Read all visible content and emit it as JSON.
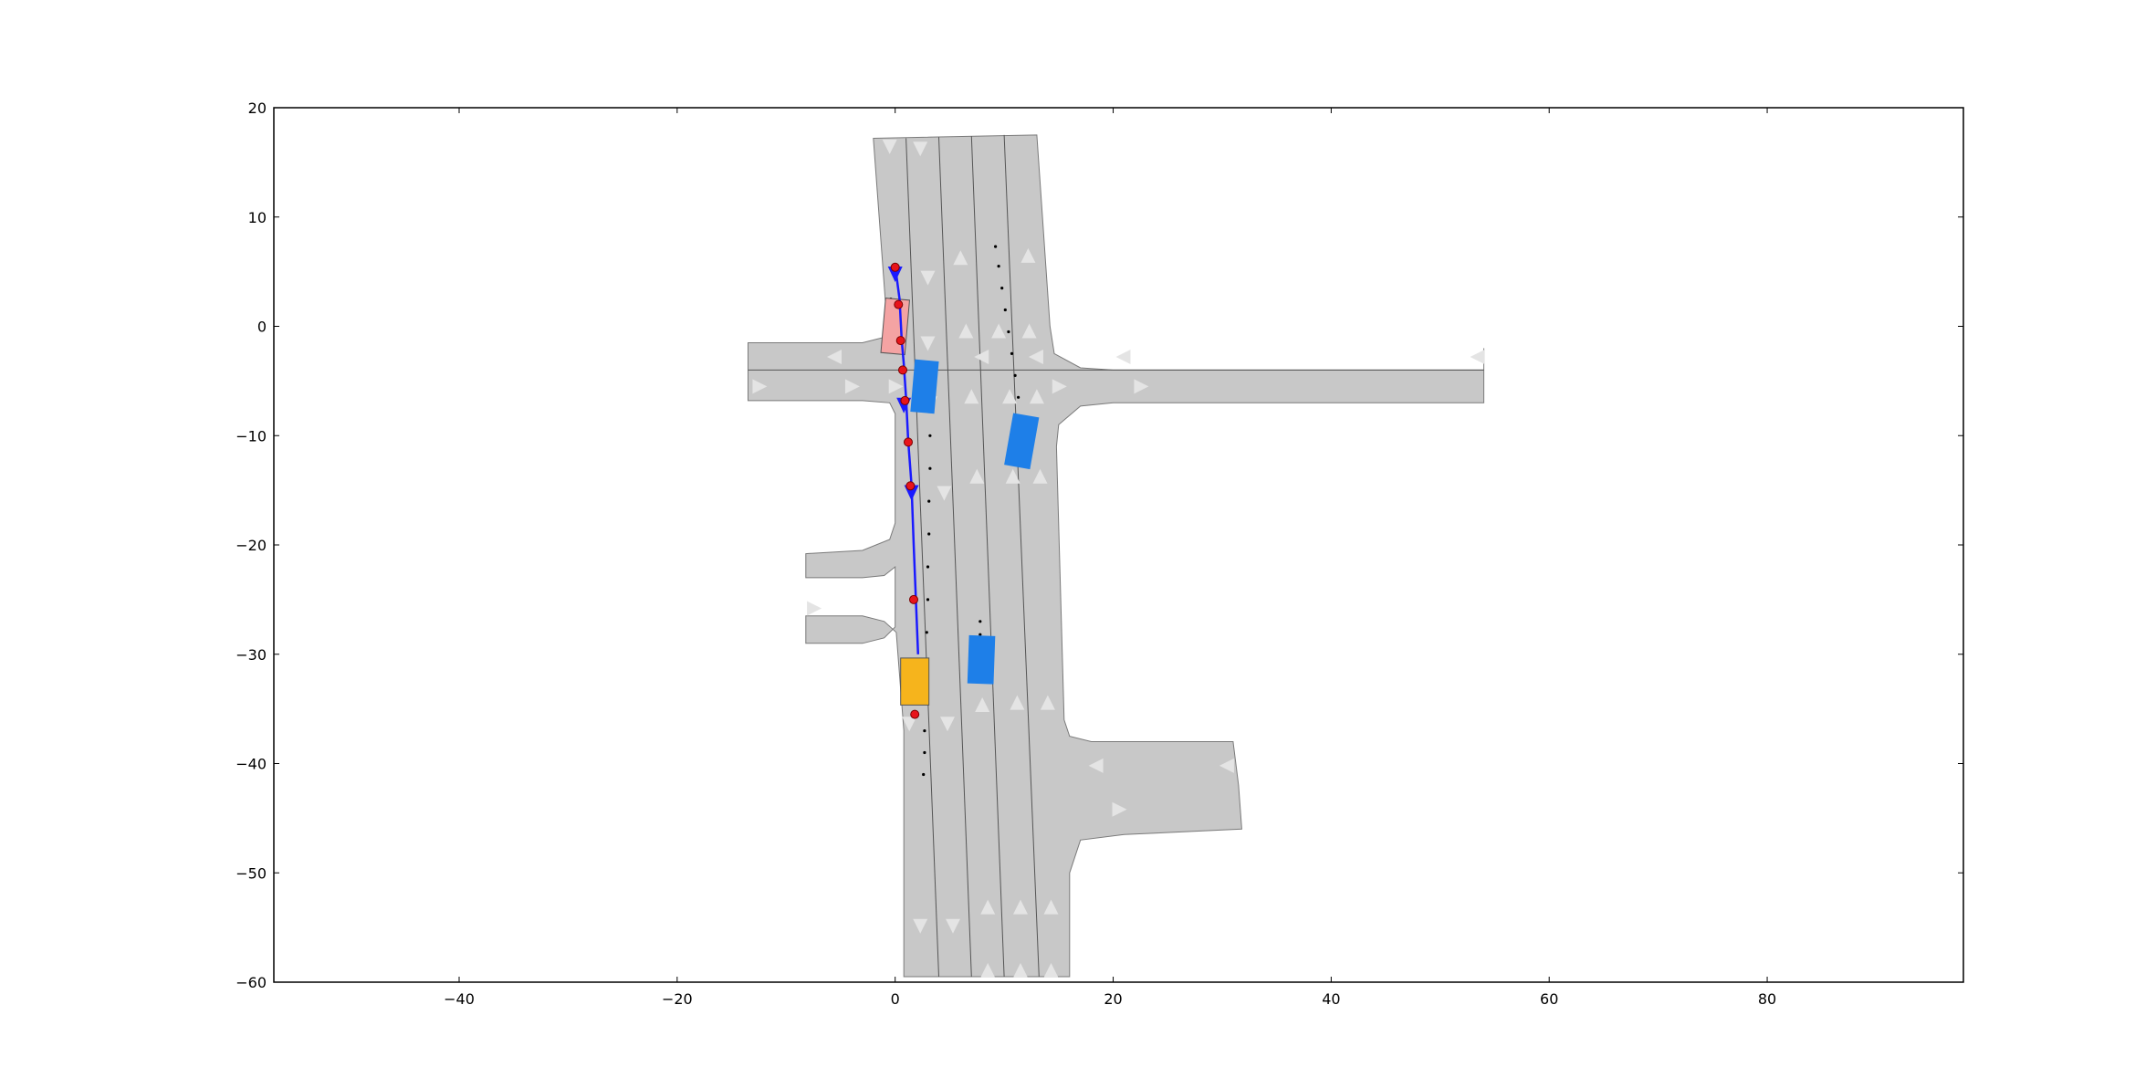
{
  "chart_data": {
    "type": "scatter",
    "title": "",
    "xlabel": "",
    "ylabel": "",
    "xlim": [
      -57,
      98
    ],
    "ylim": [
      -60,
      20
    ],
    "grid": false,
    "x_ticks": [
      -40,
      -20,
      0,
      20,
      40,
      60,
      80
    ],
    "y_ticks": [
      -60,
      -50,
      -40,
      -30,
      -20,
      -10,
      0,
      10,
      20
    ],
    "x_tick_labels": [
      "−40",
      "−20",
      "0",
      "20",
      "40",
      "60",
      "80"
    ],
    "y_tick_labels": [
      "−60",
      "−50",
      "−40",
      "−30",
      "−20",
      "−10",
      "0",
      "10",
      "20"
    ],
    "colors": {
      "road": "#c8c8c8",
      "road_edge": "#7a7a7a",
      "lane_line": "#555555",
      "lane_center": "#e2e2e2",
      "lane_arrow": "#e4e4e4",
      "ego_vehicle": "#f4a3a3",
      "other_vehicle": "#1e7fe8",
      "goal_vehicle": "#f6b41c",
      "route": "#1a1aff",
      "waypoint": "#e8141a",
      "trajectory": "#000000"
    },
    "road_polygons": [
      [
        [
          -2,
          17.2
        ],
        [
          13,
          17.5
        ],
        [
          14.2,
          0
        ],
        [
          14.6,
          -2.5
        ],
        [
          17,
          -3.8
        ],
        [
          20,
          -4
        ],
        [
          54,
          -4
        ],
        [
          54,
          -2
        ],
        [
          54,
          -7
        ],
        [
          20,
          -7
        ],
        [
          17,
          -7.3
        ],
        [
          15,
          -9
        ],
        [
          14.8,
          -11
        ],
        [
          15.5,
          -36
        ],
        [
          16,
          -37.5
        ],
        [
          18,
          -38
        ],
        [
          31,
          -38
        ],
        [
          31.5,
          -42
        ],
        [
          31.8,
          -46
        ],
        [
          21,
          -46.5
        ],
        [
          17,
          -47
        ],
        [
          16,
          -50
        ],
        [
          16,
          -59.5
        ],
        [
          0.8,
          -59.5
        ],
        [
          0.8,
          -37
        ],
        [
          0.1,
          -28
        ],
        [
          -1,
          -27
        ],
        [
          -3,
          -26.5
        ],
        [
          -8.2,
          -26.5
        ],
        [
          -8.2,
          -29
        ],
        [
          -3,
          -29
        ],
        [
          -1,
          -28.5
        ],
        [
          0,
          -27.5
        ],
        [
          0,
          -22
        ],
        [
          -1,
          -22.8
        ],
        [
          -3,
          -23
        ],
        [
          -8.2,
          -23
        ],
        [
          -8.2,
          -20.8
        ],
        [
          -3,
          -20.5
        ],
        [
          -0.5,
          -19.5
        ],
        [
          0,
          -18
        ],
        [
          0,
          -8
        ],
        [
          -0.5,
          -7
        ],
        [
          -3,
          -6.8
        ],
        [
          -13.5,
          -6.8
        ],
        [
          -13.5,
          -1.5
        ],
        [
          -3,
          -1.5
        ],
        [
          -1,
          -1
        ],
        [
          -0.8,
          1
        ],
        [
          -2,
          17.2
        ]
      ]
    ],
    "lane_lines": [
      [
        [
          1,
          17.2
        ],
        [
          4,
          -59.5
        ]
      ],
      [
        [
          4,
          17.3
        ],
        [
          7,
          -59.5
        ]
      ],
      [
        [
          7,
          17.4
        ],
        [
          10,
          -59.5
        ]
      ],
      [
        [
          10,
          17.5
        ],
        [
          13.2,
          -59.5
        ]
      ],
      [
        [
          -13.5,
          -4
        ],
        [
          54,
          -4
        ]
      ]
    ],
    "lane_arrows": [
      {
        "x": -0.5,
        "y": 16.5,
        "dir": "down"
      },
      {
        "x": 2.3,
        "y": 16.3,
        "dir": "down"
      },
      {
        "x": 3,
        "y": 4.5,
        "dir": "down"
      },
      {
        "x": 6,
        "y": 6.2,
        "dir": "up"
      },
      {
        "x": 12.2,
        "y": 6.4,
        "dir": "up"
      },
      {
        "x": 3,
        "y": -1.5,
        "dir": "down"
      },
      {
        "x": 6.5,
        "y": -0.5,
        "dir": "up"
      },
      {
        "x": 9.5,
        "y": -0.5,
        "dir": "up"
      },
      {
        "x": 12.3,
        "y": -0.5,
        "dir": "up"
      },
      {
        "x": -5.5,
        "y": -2.8,
        "dir": "left"
      },
      {
        "x": 8,
        "y": -2.8,
        "dir": "left"
      },
      {
        "x": 13,
        "y": -2.8,
        "dir": "left"
      },
      {
        "x": 21,
        "y": -2.8,
        "dir": "left"
      },
      {
        "x": 53.5,
        "y": -2.8,
        "dir": "left"
      },
      {
        "x": -12.5,
        "y": -5.5,
        "dir": "right"
      },
      {
        "x": -4,
        "y": -5.5,
        "dir": "right"
      },
      {
        "x": 0,
        "y": -5.5,
        "dir": "right"
      },
      {
        "x": 15,
        "y": -5.5,
        "dir": "right"
      },
      {
        "x": 22.5,
        "y": -5.5,
        "dir": "right"
      },
      {
        "x": 3.2,
        "y": -7,
        "dir": "down"
      },
      {
        "x": 7,
        "y": -6.5,
        "dir": "up"
      },
      {
        "x": 10.5,
        "y": -6.5,
        "dir": "up"
      },
      {
        "x": 13,
        "y": -6.5,
        "dir": "up"
      },
      {
        "x": 4.5,
        "y": -15.2,
        "dir": "down"
      },
      {
        "x": 7.5,
        "y": -13.8,
        "dir": "up"
      },
      {
        "x": 10.8,
        "y": -13.8,
        "dir": "up"
      },
      {
        "x": 13.3,
        "y": -13.8,
        "dir": "up"
      },
      {
        "x": -7.5,
        "y": -25.8,
        "dir": "right"
      },
      {
        "x": 1.3,
        "y": -36.3,
        "dir": "down"
      },
      {
        "x": 4.8,
        "y": -36.3,
        "dir": "down"
      },
      {
        "x": 8,
        "y": -34.7,
        "dir": "up"
      },
      {
        "x": 11.2,
        "y": -34.5,
        "dir": "up"
      },
      {
        "x": 14,
        "y": -34.5,
        "dir": "up"
      },
      {
        "x": 18.5,
        "y": -40.2,
        "dir": "left"
      },
      {
        "x": 30.5,
        "y": -40.2,
        "dir": "left"
      },
      {
        "x": 20.5,
        "y": -44.2,
        "dir": "right"
      },
      {
        "x": 2.3,
        "y": -54.8,
        "dir": "down"
      },
      {
        "x": 5.3,
        "y": -54.8,
        "dir": "down"
      },
      {
        "x": 8.5,
        "y": -53.2,
        "dir": "up"
      },
      {
        "x": 11.5,
        "y": -53.2,
        "dir": "up"
      },
      {
        "x": 14.3,
        "y": -53.2,
        "dir": "up"
      },
      {
        "x": 8.5,
        "y": -59,
        "dir": "up"
      },
      {
        "x": 11.5,
        "y": -59,
        "dir": "up"
      },
      {
        "x": 14.3,
        "y": -59,
        "dir": "up"
      }
    ],
    "vehicles": [
      {
        "name": "ego",
        "role": "ego_vehicle",
        "x": 0,
        "y": 0,
        "length": 5,
        "width": 2.2,
        "heading": -85
      },
      {
        "name": "car-1",
        "role": "other_vehicle",
        "x": 2.7,
        "y": -5.5,
        "length": 4.8,
        "width": 2.2,
        "heading": -85
      },
      {
        "name": "car-2",
        "role": "other_vehicle",
        "x": 11.6,
        "y": -10.5,
        "length": 4.8,
        "width": 2.4,
        "heading": -80
      },
      {
        "name": "car-3",
        "role": "other_vehicle",
        "x": 7.9,
        "y": -30.5,
        "length": 4.4,
        "width": 2.4,
        "heading": -88
      },
      {
        "name": "goal",
        "role": "goal_vehicle",
        "x": 1.8,
        "y": -32.5,
        "length": 4.3,
        "width": 2.6,
        "heading": 90
      }
    ],
    "route": [
      [
        0,
        5.5
      ],
      [
        0.4,
        2.5
      ],
      [
        0.6,
        -1.3
      ],
      [
        0.8,
        -3.5
      ],
      [
        1,
        -6.5
      ],
      [
        1.2,
        -10.5
      ],
      [
        1.5,
        -14.5
      ],
      [
        1.7,
        -20
      ],
      [
        1.9,
        -25
      ],
      [
        2.1,
        -30
      ]
    ],
    "route_arrows": [
      {
        "x": 0,
        "y": 4.8
      },
      {
        "x": 0.8,
        "y": -7.2
      },
      {
        "x": 1.5,
        "y": -15.2
      }
    ],
    "waypoints": [
      [
        0,
        5.4
      ],
      [
        0.3,
        2
      ],
      [
        0.5,
        -1.3
      ],
      [
        0.7,
        -4
      ],
      [
        0.9,
        -6.8
      ],
      [
        1.2,
        -10.6
      ],
      [
        1.4,
        -14.6
      ],
      [
        1.7,
        -25
      ],
      [
        1.8,
        -35.5
      ]
    ],
    "trajectories": [
      [
        [
          3.3,
          -7
        ],
        [
          3.2,
          -10
        ],
        [
          3.2,
          -13
        ],
        [
          3.1,
          -16
        ],
        [
          3.1,
          -19
        ],
        [
          3,
          -22
        ],
        [
          3,
          -25
        ],
        [
          2.9,
          -28
        ],
        [
          2.9,
          -31
        ],
        [
          2.8,
          -34
        ],
        [
          2.7,
          -37
        ],
        [
          2.7,
          -39
        ],
        [
          2.6,
          -41
        ]
      ],
      [
        [
          9.2,
          7.3
        ],
        [
          9.5,
          5.5
        ],
        [
          9.8,
          3.5
        ],
        [
          10.1,
          1.5
        ],
        [
          10.4,
          -0.5
        ],
        [
          10.7,
          -2.5
        ],
        [
          11,
          -4.5
        ],
        [
          11.3,
          -6.5
        ],
        [
          11.6,
          -8.5
        ],
        [
          11.9,
          -10.2
        ]
      ],
      [
        [
          7.8,
          -27
        ],
        [
          7.8,
          -28.2
        ],
        [
          7.8,
          -29.3
        ],
        [
          7.8,
          -30.5
        ]
      ],
      [
        [
          -0.4,
          2.5
        ],
        [
          -0.2,
          0
        ],
        [
          0,
          -2
        ]
      ]
    ]
  }
}
